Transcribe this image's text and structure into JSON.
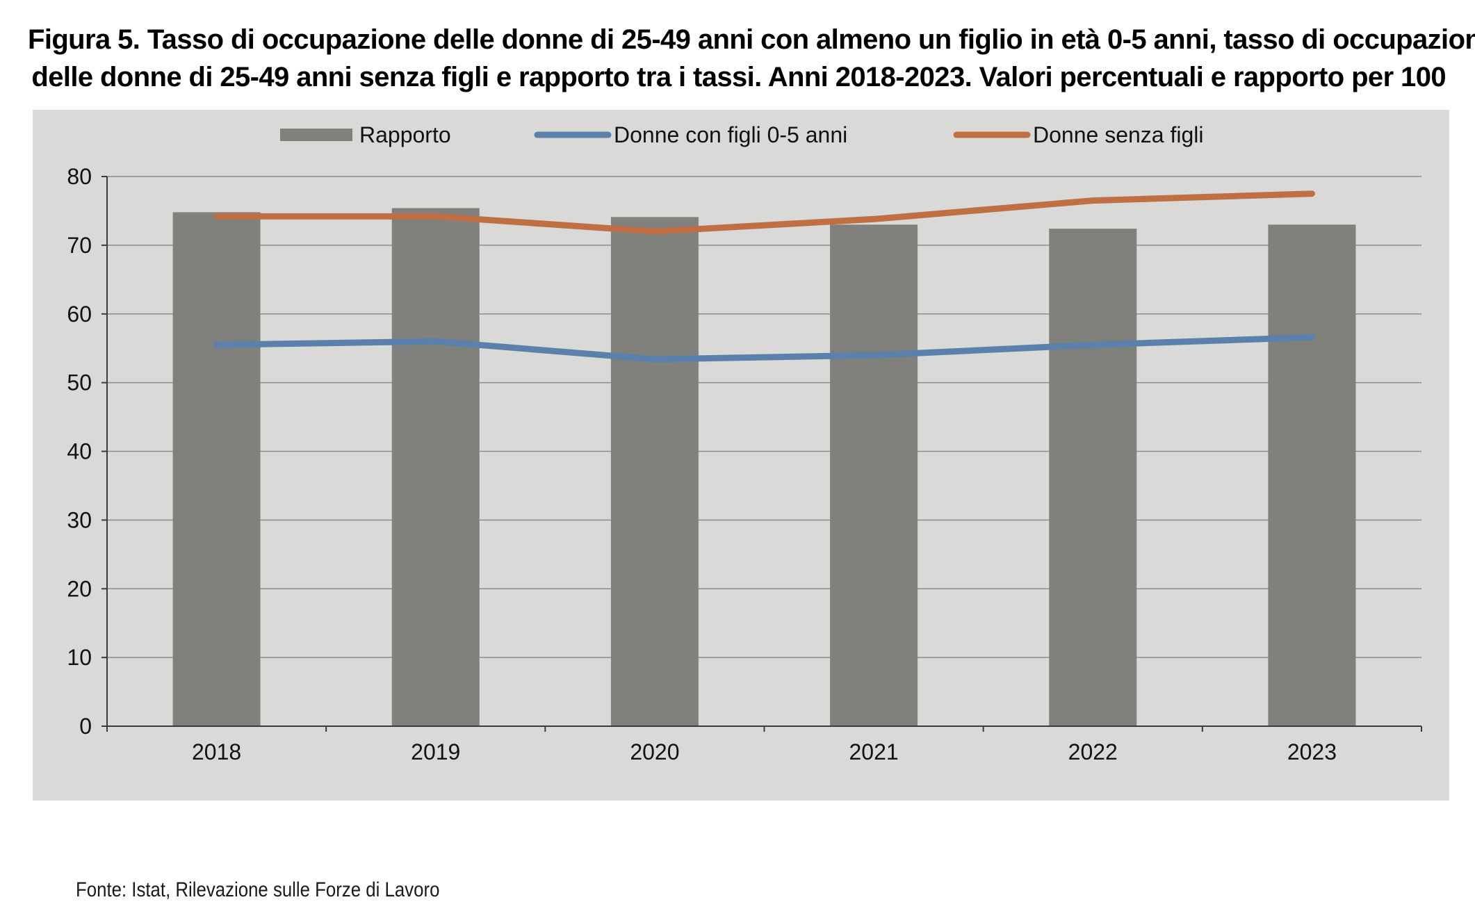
{
  "title": {
    "line1": "Figura 5. Tasso di occupazione delle donne di 25-49 anni con almeno un figlio in età 0-5 anni, tasso di occupazione",
    "line2": "delle donne di 25-49 anni senza figli e rapporto tra i tassi. Anni 2018-2023. Valori percentuali e rapporto per 100"
  },
  "source": "Fonte: Istat, Rilevazione sulle Forze di Lavoro",
  "colors": {
    "panel_background": "#d9d9d8",
    "bar": "#80807c",
    "line_blue": "#5b80ab",
    "line_orange": "#bf6f43",
    "gridline": "#8c8c8c",
    "axis": "#3a3a3a"
  },
  "chart_data": {
    "type": "bar",
    "categories": [
      "2018",
      "2019",
      "2020",
      "2021",
      "2022",
      "2023"
    ],
    "series": [
      {
        "name": "Rapporto",
        "type": "bar",
        "color": "#80807c",
        "values": [
          74.8,
          75.4,
          74.1,
          73.0,
          72.4,
          73.0
        ]
      },
      {
        "name": "Donne con figli 0-5 anni",
        "type": "line",
        "color": "#5b80ab",
        "values": [
          55.5,
          56.0,
          53.4,
          54.0,
          55.5,
          56.6
        ]
      },
      {
        "name": "Donne senza figli",
        "type": "line",
        "color": "#bf6f43",
        "values": [
          74.2,
          74.2,
          72.0,
          73.8,
          76.5,
          77.5
        ]
      }
    ],
    "ylim": [
      0,
      80
    ],
    "yticks": [
      "0",
      "10",
      "20",
      "30",
      "40",
      "50",
      "60",
      "70",
      "80"
    ],
    "grid": true,
    "legend_position": "top-center"
  }
}
